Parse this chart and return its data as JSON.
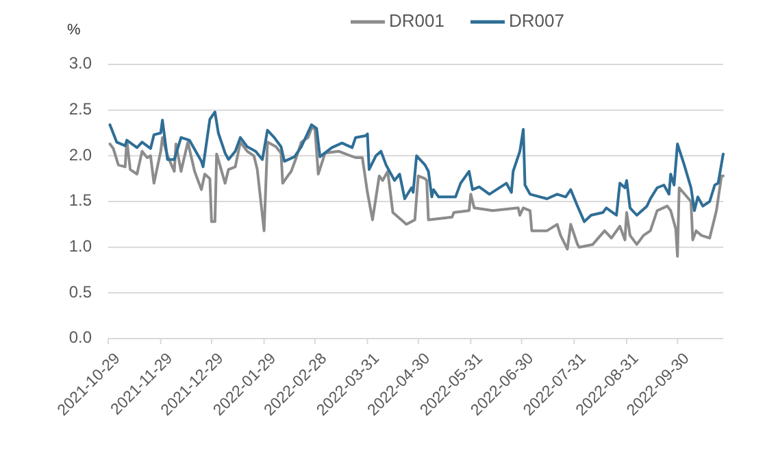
{
  "chart_data": {
    "type": "line",
    "ylabel": "%",
    "legend": "top",
    "grid": "y",
    "line_style": "solid",
    "marker": "none",
    "xlim": [
      "2021-10-29",
      "2022-10-27"
    ],
    "xticks": [
      "2021-10-29",
      "2021-11-29",
      "2021-12-29",
      "2022-01-29",
      "2022-02-28",
      "2022-03-31",
      "2022-04-30",
      "2022-05-31",
      "2022-06-30",
      "2022-07-31",
      "2022-08-31",
      "2022-09-30"
    ],
    "ylim": [
      0,
      3
    ],
    "yticks": [
      {
        "value": 0,
        "label": "0.0"
      },
      {
        "value": 0.5,
        "label": "0.5"
      },
      {
        "value": 1,
        "label": "1.0"
      },
      {
        "value": 1.5,
        "label": "1.5"
      },
      {
        "value": 2,
        "label": "2.0"
      },
      {
        "value": 2.5,
        "label": "2.5"
      },
      {
        "value": 3,
        "label": "3.0"
      }
    ],
    "series": [
      {
        "name": "DR001",
        "color": "#8c8c8c",
        "x": [
          "2021-10-30",
          "2021-11-01",
          "2021-11-04",
          "2021-11-08",
          "2021-11-09",
          "2021-11-11",
          "2021-11-15",
          "2021-11-18",
          "2021-11-21",
          "2021-11-23",
          "2021-11-25",
          "2021-11-29",
          "2021-11-30",
          "2021-12-03",
          "2021-12-07",
          "2021-12-08",
          "2021-12-11",
          "2021-12-15",
          "2021-12-19",
          "2021-12-23",
          "2021-12-25",
          "2021-12-28",
          "2021-12-29",
          "2021-12-31",
          "2022-01-01",
          "2022-01-06",
          "2022-01-08",
          "2022-01-12",
          "2022-01-15",
          "2022-01-19",
          "2022-01-23",
          "2022-01-25",
          "2022-01-29",
          "2022-01-31",
          "2022-02-05",
          "2022-02-08",
          "2022-02-09",
          "2022-02-12",
          "2022-02-14",
          "2022-02-17",
          "2022-02-20",
          "2022-02-24",
          "2022-02-26",
          "2022-02-28",
          "2022-03-02",
          "2022-03-06",
          "2022-03-14",
          "2022-03-24",
          "2022-03-28",
          "2022-03-31",
          "2022-04-03",
          "2022-04-07",
          "2022-04-09",
          "2022-04-12",
          "2022-04-15",
          "2022-04-20",
          "2022-04-23",
          "2022-04-28",
          "2022-04-30",
          "2022-05-04",
          "2022-05-05",
          "2022-05-06",
          "2022-05-20",
          "2022-05-21",
          "2022-05-30",
          "2022-05-31",
          "2022-06-02",
          "2022-06-13",
          "2022-06-28",
          "2022-06-29",
          "2022-07-01",
          "2022-07-05",
          "2022-07-06",
          "2022-07-15",
          "2022-07-21",
          "2022-07-23",
          "2022-07-27",
          "2022-07-29",
          "2022-08-02",
          "2022-08-03",
          "2022-08-11",
          "2022-08-18",
          "2022-08-22",
          "2022-08-27",
          "2022-08-30",
          "2022-08-31",
          "2022-09-02",
          "2022-09-06",
          "2022-09-10",
          "2022-09-14",
          "2022-09-18",
          "2022-09-24",
          "2022-09-26",
          "2022-09-29",
          "2022-09-30",
          "2022-10-01",
          "2022-10-08",
          "2022-10-09",
          "2022-10-11",
          "2022-10-14",
          "2022-10-19",
          "2022-10-23",
          "2022-10-26",
          "2022-10-27"
        ],
        "values": [
          2.13,
          2.08,
          1.9,
          1.88,
          2.17,
          1.85,
          1.8,
          2.05,
          1.98,
          2.0,
          1.7,
          2.05,
          2.2,
          2.0,
          1.83,
          2.13,
          1.83,
          2.15,
          1.83,
          1.63,
          1.8,
          1.75,
          1.28,
          1.28,
          2.02,
          1.7,
          1.85,
          1.88,
          2.15,
          2.05,
          2.0,
          1.85,
          1.18,
          2.15,
          2.1,
          2.03,
          1.7,
          1.78,
          1.83,
          1.98,
          2.15,
          2.2,
          2.3,
          2.3,
          1.8,
          2.03,
          2.05,
          1.98,
          1.98,
          1.6,
          1.3,
          1.78,
          1.73,
          1.83,
          1.38,
          1.3,
          1.25,
          1.3,
          1.78,
          1.75,
          1.73,
          1.3,
          1.33,
          1.38,
          1.4,
          1.58,
          1.43,
          1.4,
          1.43,
          1.35,
          1.43,
          1.4,
          1.18,
          1.18,
          1.25,
          1.13,
          0.98,
          1.25,
          1.03,
          1.0,
          1.03,
          1.18,
          1.1,
          1.23,
          1.08,
          1.38,
          1.13,
          1.03,
          1.13,
          1.18,
          1.4,
          1.45,
          1.4,
          1.2,
          0.9,
          1.65,
          1.5,
          1.08,
          1.18,
          1.13,
          1.1,
          1.4,
          1.78,
          1.78
        ]
      },
      {
        "name": "DR007",
        "color": "#2e6e96",
        "x": [
          "2021-10-30",
          "2021-11-03",
          "2021-11-08",
          "2021-11-09",
          "2021-11-15",
          "2021-11-18",
          "2021-11-23",
          "2021-11-25",
          "2021-11-29",
          "2021-11-30",
          "2021-12-03",
          "2021-12-07",
          "2021-12-11",
          "2021-12-16",
          "2021-12-23",
          "2021-12-24",
          "2021-12-28",
          "2021-12-31",
          "2022-01-02",
          "2022-01-06",
          "2022-01-08",
          "2022-01-12",
          "2022-01-15",
          "2022-01-19",
          "2022-01-24",
          "2022-01-28",
          "2022-01-31",
          "2022-02-04",
          "2022-02-08",
          "2022-02-10",
          "2022-02-16",
          "2022-02-20",
          "2022-02-26",
          "2022-03-01",
          "2022-03-03",
          "2022-03-10",
          "2022-03-16",
          "2022-03-22",
          "2022-03-24",
          "2022-03-30",
          "2022-03-31",
          "2022-04-01",
          "2022-04-05",
          "2022-04-08",
          "2022-04-11",
          "2022-04-16",
          "2022-04-19",
          "2022-04-22",
          "2022-04-26",
          "2022-04-27",
          "2022-04-29",
          "2022-05-04",
          "2022-05-06",
          "2022-05-08",
          "2022-05-09",
          "2022-05-12",
          "2022-05-22",
          "2022-05-25",
          "2022-05-30",
          "2022-06-01",
          "2022-06-05",
          "2022-06-11",
          "2022-06-21",
          "2022-06-24",
          "2022-06-25",
          "2022-06-29",
          "2022-07-01",
          "2022-07-02",
          "2022-07-05",
          "2022-07-15",
          "2022-07-21",
          "2022-07-26",
          "2022-07-29",
          "2022-08-02",
          "2022-08-06",
          "2022-08-10",
          "2022-08-17",
          "2022-08-19",
          "2022-08-25",
          "2022-08-27",
          "2022-08-30",
          "2022-08-31",
          "2022-09-02",
          "2022-09-06",
          "2022-09-12",
          "2022-09-14",
          "2022-09-18",
          "2022-09-22",
          "2022-09-25",
          "2022-09-26",
          "2022-09-28",
          "2022-09-30",
          "2022-10-04",
          "2022-10-08",
          "2022-10-10",
          "2022-10-12",
          "2022-10-15",
          "2022-10-19",
          "2022-10-22",
          "2022-10-24",
          "2022-10-27"
        ],
        "values": [
          2.34,
          2.15,
          2.11,
          2.17,
          2.09,
          2.15,
          2.08,
          2.23,
          2.25,
          2.39,
          1.96,
          1.96,
          2.2,
          2.17,
          1.94,
          1.88,
          2.4,
          2.48,
          2.25,
          2.03,
          1.96,
          2.05,
          2.2,
          2.1,
          2.05,
          1.96,
          2.28,
          2.2,
          2.1,
          1.94,
          1.99,
          2.1,
          2.34,
          2.3,
          1.99,
          2.09,
          2.14,
          2.09,
          2.2,
          2.22,
          2.24,
          1.85,
          2.0,
          2.05,
          1.9,
          1.73,
          1.8,
          1.53,
          1.65,
          1.6,
          2.0,
          1.9,
          1.83,
          1.55,
          1.63,
          1.55,
          1.55,
          1.7,
          1.83,
          1.63,
          1.66,
          1.58,
          1.7,
          1.6,
          1.83,
          2.05,
          2.29,
          1.68,
          1.58,
          1.53,
          1.58,
          1.55,
          1.63,
          1.45,
          1.28,
          1.35,
          1.38,
          1.43,
          1.35,
          1.7,
          1.65,
          1.73,
          1.43,
          1.35,
          1.45,
          1.53,
          1.65,
          1.68,
          1.58,
          1.8,
          1.68,
          2.13,
          1.9,
          1.65,
          1.4,
          1.55,
          1.45,
          1.5,
          1.68,
          1.7,
          2.02
        ]
      }
    ]
  }
}
